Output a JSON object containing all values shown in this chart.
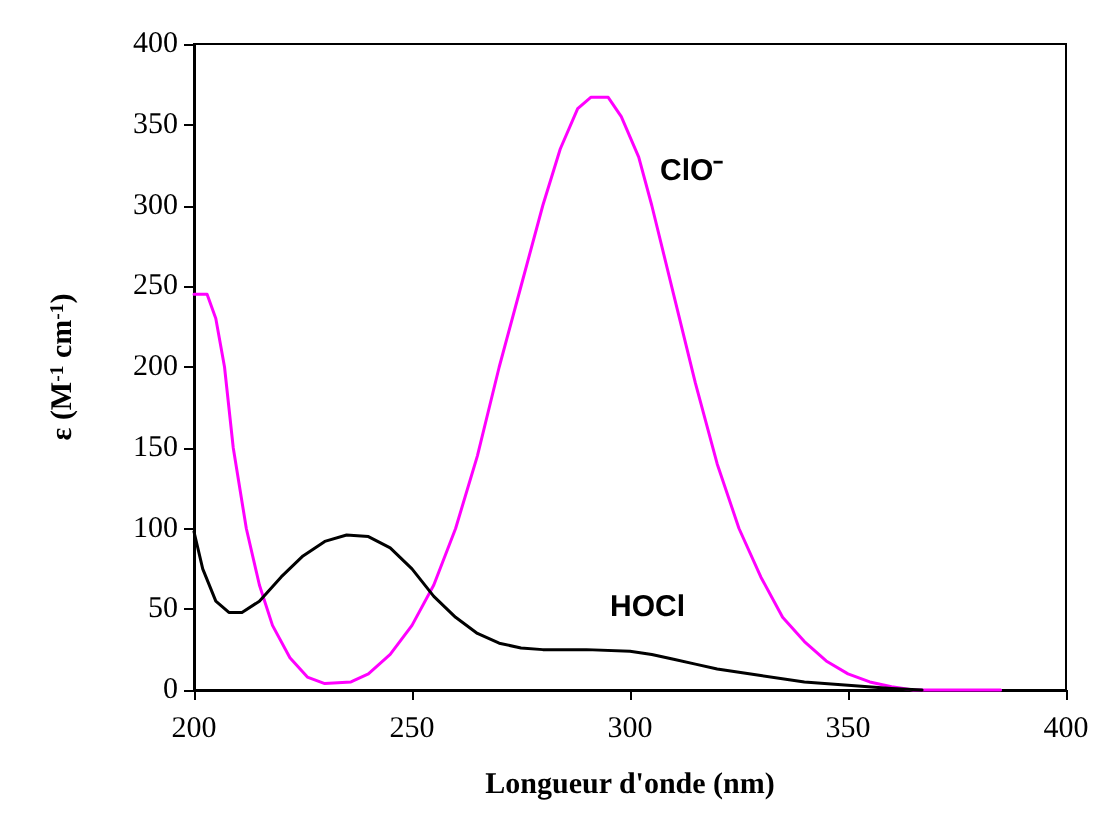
{
  "chart_data": {
    "type": "line",
    "xlabel": "Longueur d'onde (nm)",
    "ylabel": "ε (M$^{-1}$ cm$^{-1}$)",
    "xlim": [
      200,
      400
    ],
    "xticks": [
      200,
      250,
      300,
      350,
      400
    ],
    "ylim": [
      0,
      400
    ],
    "yticks": [
      0,
      50,
      100,
      150,
      200,
      250,
      300,
      350,
      400
    ],
    "grid": false,
    "marker": "none",
    "line_style": "solid",
    "series": [
      {
        "color": "#ff00ff",
        "x": [
          200,
          203,
          205,
          207,
          209,
          212,
          215,
          218,
          222,
          226,
          230,
          236,
          240,
          245,
          250,
          255,
          260,
          265,
          270,
          275,
          280,
          284,
          288,
          291,
          295,
          298,
          302,
          305,
          310,
          315,
          320,
          325,
          330,
          335,
          340,
          345,
          350,
          355,
          360,
          365,
          370,
          375,
          380,
          385
        ],
        "values": [
          245,
          245,
          230,
          200,
          150,
          100,
          65,
          40,
          20,
          8,
          4,
          5,
          10,
          22,
          40,
          65,
          100,
          145,
          200,
          250,
          300,
          335,
          360,
          367,
          367,
          355,
          330,
          300,
          245,
          190,
          140,
          100,
          70,
          45,
          30,
          18,
          10,
          5,
          2,
          0,
          0,
          0,
          0,
          0
        ]
      },
      {
        "color": "#000000",
        "x": [
          200,
          202,
          205,
          208,
          211,
          215,
          220,
          225,
          230,
          235,
          240,
          245,
          250,
          255,
          260,
          265,
          270,
          275,
          280,
          290,
          300,
          305,
          310,
          315,
          320,
          330,
          340,
          350,
          360,
          367
        ],
        "values": [
          98,
          75,
          55,
          48,
          48,
          55,
          70,
          83,
          92,
          96,
          95,
          88,
          75,
          58,
          45,
          35,
          29,
          26,
          25,
          25,
          24,
          22,
          19,
          16,
          13,
          9,
          5,
          3,
          1,
          0
        ]
      }
    ],
    "annotations": [
      "ClO⁻",
      "HOCl"
    ]
  }
}
